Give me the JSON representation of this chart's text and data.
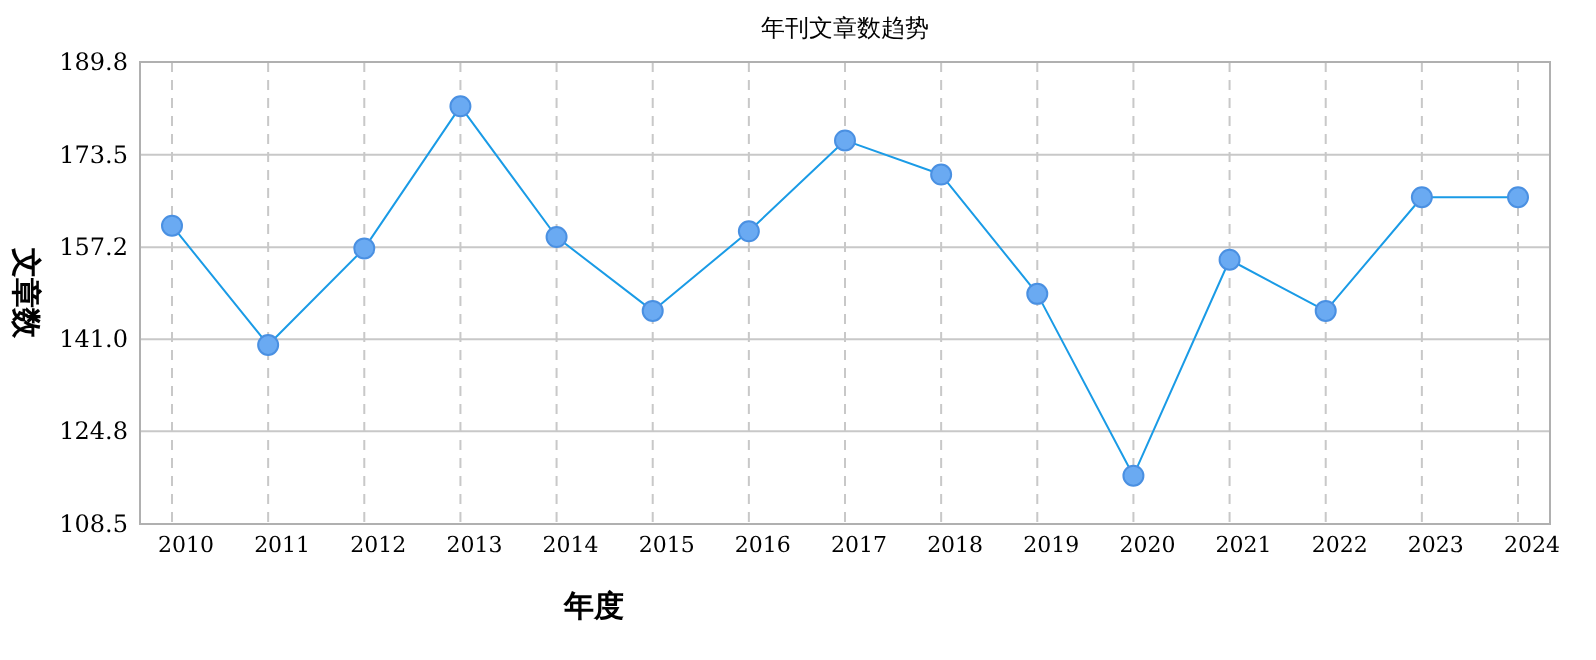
{
  "chart_data": {
    "type": "line",
    "title": "年刊文章数趋势",
    "xlabel": "年度",
    "ylabel": "文章数",
    "categories": [
      "2010",
      "2011",
      "2012",
      "2013",
      "2014",
      "2015",
      "2016",
      "2017",
      "2018",
      "2019",
      "2020",
      "2021",
      "2022",
      "2023",
      "2024"
    ],
    "series": [
      {
        "color": "#1a9be6",
        "values": [
          161,
          140,
          157,
          182,
          159,
          146,
          160,
          176,
          170,
          149,
          117,
          155,
          146,
          166,
          166
        ]
      }
    ],
    "ylim": [
      108.5,
      189.8
    ],
    "yticks": [
      108.5,
      124.8,
      {
        "value": 141,
        "label": "141.0"
      },
      157.2,
      173.5,
      189.8
    ],
    "grid": true,
    "marker": "circle",
    "line_style": "solid"
  }
}
